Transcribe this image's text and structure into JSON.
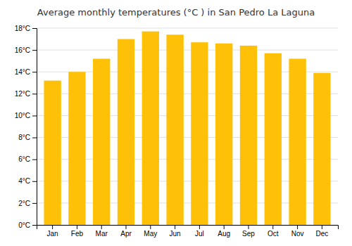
{
  "chart_data": {
    "type": "bar",
    "title": "Average monthly temperatures (°C ) in San Pedro La Laguna",
    "categories": [
      "Jan",
      "Feb",
      "Mar",
      "Apr",
      "May",
      "Jun",
      "Jul",
      "Aug",
      "Sep",
      "Oct",
      "Nov",
      "Dec"
    ],
    "values": [
      13.2,
      14.0,
      15.2,
      17.0,
      17.7,
      17.4,
      16.7,
      16.6,
      16.4,
      15.7,
      15.2,
      13.9
    ],
    "color": "#FFC107",
    "ylim": [
      0,
      18
    ],
    "yticks": [
      {
        "value": 0,
        "label": "0°C"
      },
      {
        "value": 2,
        "label": "2°C"
      },
      {
        "value": 4,
        "label": "4°C"
      },
      {
        "value": 6,
        "label": "6°C"
      },
      {
        "value": 8,
        "label": "8°C"
      },
      {
        "value": 10,
        "label": "10°C"
      },
      {
        "value": 12,
        "label": "12°C"
      },
      {
        "value": 14,
        "label": "14°C"
      },
      {
        "value": 16,
        "label": "16°C"
      },
      {
        "value": 18,
        "label": "18°C"
      }
    ],
    "grid": true
  }
}
